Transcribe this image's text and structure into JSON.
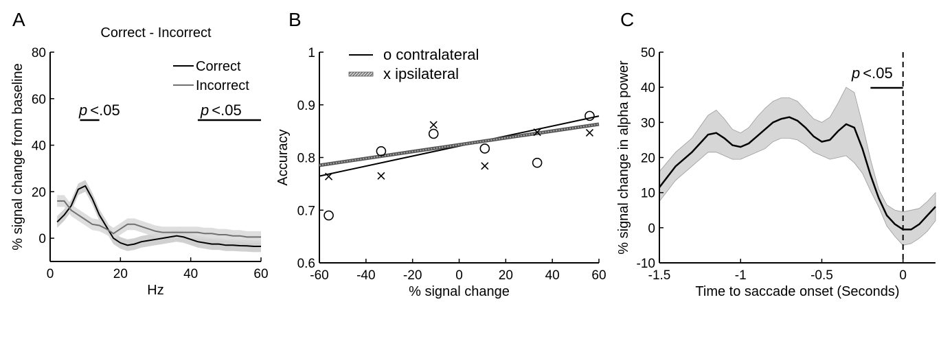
{
  "chart_data": [
    {
      "panel": "A",
      "type": "line",
      "title": "Correct - Incorrect",
      "xlabel": "Hz",
      "ylabel": "% signal change from baseline",
      "xlim": [
        0,
        60
      ],
      "ylim": [
        -10,
        80
      ],
      "xticks": [
        0,
        20,
        40,
        60
      ],
      "yticks": [
        0,
        20,
        40,
        60,
        80
      ],
      "series": [
        {
          "name": "Correct",
          "color": "#000000",
          "x": [
            2,
            4,
            6,
            8,
            10,
            12,
            14,
            16,
            18,
            20,
            22,
            24,
            26,
            28,
            30,
            32,
            34,
            36,
            38,
            40,
            42,
            44,
            46,
            48,
            50,
            52,
            54,
            56,
            58,
            60
          ],
          "values": [
            7,
            10,
            14,
            21,
            22.5,
            17,
            10,
            5,
            0,
            -2,
            -3,
            -2.5,
            -1.5,
            -1,
            -0.5,
            0,
            0.5,
            1,
            0.5,
            -0.5,
            -1.5,
            -2,
            -2.5,
            -2.5,
            -3,
            -3,
            -3.2,
            -3.3,
            -3.5,
            -3.5
          ],
          "band": 2.5
        },
        {
          "name": "Incorrect",
          "color": "#707070",
          "x": [
            2,
            4,
            6,
            8,
            10,
            12,
            14,
            16,
            18,
            20,
            22,
            24,
            26,
            28,
            30,
            32,
            34,
            36,
            38,
            40,
            42,
            44,
            46,
            48,
            50,
            52,
            54,
            56,
            58,
            60
          ],
          "values": [
            16,
            16,
            12,
            10,
            8,
            6,
            5.5,
            4,
            2,
            4,
            6,
            6,
            5,
            4,
            3,
            2.5,
            2.5,
            2.5,
            2.5,
            2.5,
            2.5,
            2,
            2,
            1.5,
            1.5,
            1,
            1,
            0.5,
            0.5,
            0.5
          ],
          "band": 2.5
        }
      ],
      "significance": [
        {
          "label_p": "p",
          "label_rest": "<.05",
          "x_range": [
            8.5,
            14
          ]
        },
        {
          "label_p": "p",
          "label_rest": "<.05",
          "x_range": [
            42,
            60
          ]
        }
      ],
      "legend": "top-right"
    },
    {
      "panel": "B",
      "type": "scatter",
      "xlabel": "% signal change",
      "ylabel": "Accuracy",
      "xlim": [
        -60,
        60
      ],
      "ylim": [
        0.6,
        1
      ],
      "xticks": [
        -60,
        -40,
        -20,
        0,
        20,
        40,
        60
      ],
      "yticks": [
        0.6,
        0.7,
        0.8,
        0.9,
        1
      ],
      "ytick_labels": [
        "0.6",
        "0.7",
        "0.8",
        "0.9",
        "1"
      ],
      "series": [
        {
          "name": "o contralateral",
          "marker": "circle",
          "x": [
            -56,
            -33.5,
            -11,
            11,
            33.5,
            56
          ],
          "y": [
            0.69,
            0.812,
            0.845,
            0.817,
            0.79,
            0.879
          ],
          "fit": {
            "intercept": 0.8217,
            "slope": 0.00095
          },
          "line_style": "solid"
        },
        {
          "name": "x ipsilateral",
          "marker": "x",
          "x": [
            -56,
            -33.5,
            -11,
            11,
            33.5,
            56
          ],
          "y": [
            0.764,
            0.765,
            0.862,
            0.784,
            0.848,
            0.847
          ],
          "fit": {
            "intercept": 0.8242,
            "slope": 0.00065
          },
          "line_style": "hatched"
        }
      ],
      "legend": "top-left"
    },
    {
      "panel": "C",
      "type": "line",
      "xlabel": "Time to saccade onset (Seconds)",
      "ylabel": "% signal change in alpha power",
      "xlim": [
        -1.5,
        0.2
      ],
      "ylim": [
        -10,
        50
      ],
      "xticks": [
        -1.5,
        -1,
        -0.5,
        0
      ],
      "xtick_labels": [
        "-1.5",
        "-1",
        "-0.5",
        "0"
      ],
      "yticks": [
        -10,
        0,
        10,
        20,
        30,
        40,
        50
      ],
      "series": [
        {
          "x": [
            -1.5,
            -1.4,
            -1.3,
            -1.2,
            -1.15,
            -1.1,
            -1.05,
            -1.0,
            -0.95,
            -0.9,
            -0.85,
            -0.8,
            -0.75,
            -0.7,
            -0.65,
            -0.6,
            -0.55,
            -0.5,
            -0.45,
            -0.4,
            -0.35,
            -0.3,
            -0.25,
            -0.2,
            -0.15,
            -0.1,
            -0.05,
            0.0,
            0.05,
            0.1,
            0.15,
            0.2
          ],
          "values": [
            11.5,
            17.5,
            21.5,
            26.5,
            27,
            25.5,
            23.5,
            23,
            24,
            26,
            28,
            30,
            31,
            31.5,
            30.5,
            28.5,
            26,
            24.5,
            25,
            27.5,
            29.5,
            28.5,
            22.5,
            15,
            8.5,
            3.5,
            1,
            -0.5,
            -0.5,
            1,
            3.5,
            6
          ],
          "lower": [
            7.5,
            13.5,
            17.5,
            21.5,
            21.5,
            20.5,
            19.5,
            19.5,
            20.5,
            21.5,
            22.5,
            24.5,
            25.5,
            25.5,
            25,
            23.5,
            21.5,
            20.5,
            19.5,
            20,
            20.5,
            18.5,
            15.5,
            10.5,
            6,
            0.5,
            -2.5,
            -5,
            -4.5,
            -3,
            -1,
            2
          ],
          "upper": [
            16,
            21.5,
            25.5,
            32,
            33.5,
            31,
            28,
            27,
            28.5,
            31.5,
            34,
            36,
            37,
            37,
            36,
            33.5,
            31,
            30,
            31.5,
            35.5,
            40,
            38.5,
            29.5,
            19.5,
            11,
            6.5,
            5,
            4.5,
            5,
            5.5,
            7.5,
            10
          ]
        }
      ],
      "vline_x": 0,
      "significance": [
        {
          "label_p": "p",
          "label_rest": "<.05",
          "x_range": [
            -0.2,
            0.0
          ]
        }
      ]
    }
  ],
  "panels": {
    "a": {
      "letter": "A"
    },
    "b": {
      "letter": "B"
    },
    "c": {
      "letter": "C"
    }
  }
}
